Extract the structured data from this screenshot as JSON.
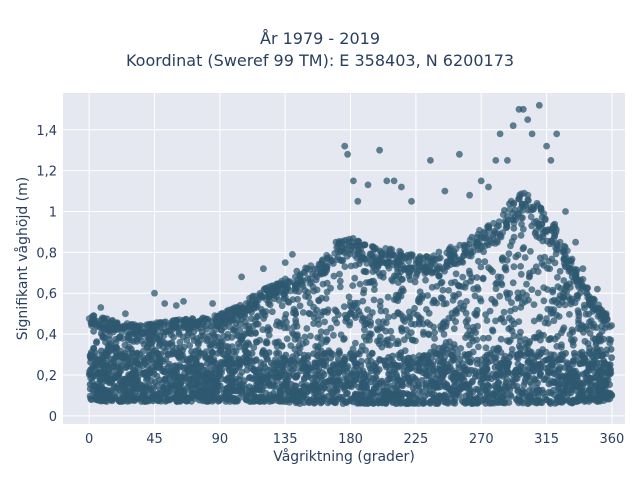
{
  "chart_data": {
    "type": "scatter",
    "title": "År 1979 - 2019",
    "subtitle": "Koordinat (Sweref 99 TM): E 358403, N 6200173",
    "xlabel": "Vågriktning (grader)",
    "ylabel": "Signifikant våghöjd (m)",
    "xlim": [
      -18,
      369
    ],
    "ylim": [
      -0.04,
      1.58
    ],
    "x_ticks": [
      0,
      45,
      90,
      135,
      180,
      225,
      270,
      315,
      360
    ],
    "x_tick_labels": [
      "0",
      "45",
      "90",
      "135",
      "180",
      "225",
      "270",
      "315",
      "360"
    ],
    "y_ticks": [
      0,
      0.2,
      0.4,
      0.6,
      0.8,
      1.0,
      1.2,
      1.4
    ],
    "y_tick_labels": [
      "0",
      "0,2",
      "0,4",
      "0,6",
      "0,8",
      "1",
      "1,2",
      "1,4"
    ],
    "grid": true,
    "marker_color": "#2e5870",
    "plot_bg": "#e5e8f0",
    "envelope": {
      "x": [
        0,
        10,
        20,
        30,
        40,
        50,
        60,
        70,
        80,
        90,
        100,
        110,
        120,
        130,
        140,
        150,
        160,
        170,
        180,
        190,
        200,
        210,
        220,
        230,
        240,
        250,
        260,
        270,
        280,
        290,
        300,
        310,
        320,
        330,
        340,
        350,
        360
      ],
      "y_min": [
        0.08,
        0.07,
        0.07,
        0.07,
        0.07,
        0.07,
        0.07,
        0.07,
        0.07,
        0.07,
        0.07,
        0.07,
        0.07,
        0.07,
        0.06,
        0.06,
        0.06,
        0.06,
        0.06,
        0.06,
        0.06,
        0.06,
        0.06,
        0.06,
        0.06,
        0.06,
        0.06,
        0.06,
        0.06,
        0.06,
        0.06,
        0.06,
        0.06,
        0.06,
        0.07,
        0.07,
        0.08
      ],
      "y_max": [
        0.5,
        0.48,
        0.46,
        0.45,
        0.45,
        0.46,
        0.47,
        0.48,
        0.48,
        0.5,
        0.53,
        0.58,
        0.62,
        0.65,
        0.7,
        0.73,
        0.76,
        0.85,
        0.88,
        0.84,
        0.82,
        0.82,
        0.8,
        0.78,
        0.8,
        0.83,
        0.85,
        0.92,
        0.95,
        1.05,
        1.1,
        1.03,
        0.95,
        0.8,
        0.68,
        0.55,
        0.48
      ]
    },
    "outliers": [
      [
        8,
        0.53
      ],
      [
        25,
        0.5
      ],
      [
        45,
        0.6
      ],
      [
        52,
        0.55
      ],
      [
        60,
        0.54
      ],
      [
        65,
        0.56
      ],
      [
        85,
        0.55
      ],
      [
        105,
        0.68
      ],
      [
        120,
        0.72
      ],
      [
        135,
        0.75
      ],
      [
        140,
        0.79
      ],
      [
        150,
        0.72
      ],
      [
        170,
        0.85
      ],
      [
        176,
        1.32
      ],
      [
        178,
        1.28
      ],
      [
        182,
        1.15
      ],
      [
        185,
        1.05
      ],
      [
        192,
        1.13
      ],
      [
        200,
        1.3
      ],
      [
        205,
        1.15
      ],
      [
        210,
        1.15
      ],
      [
        215,
        1.12
      ],
      [
        222,
        1.05
      ],
      [
        235,
        1.25
      ],
      [
        245,
        1.1
      ],
      [
        255,
        1.28
      ],
      [
        262,
        1.08
      ],
      [
        270,
        1.15
      ],
      [
        275,
        1.12
      ],
      [
        280,
        1.25
      ],
      [
        283,
        1.38
      ],
      [
        288,
        1.25
      ],
      [
        292,
        1.42
      ],
      [
        296,
        1.5
      ],
      [
        299,
        1.5
      ],
      [
        302,
        1.45
      ],
      [
        305,
        1.38
      ],
      [
        310,
        1.52
      ],
      [
        315,
        1.32
      ],
      [
        318,
        1.25
      ],
      [
        322,
        1.38
      ],
      [
        328,
        1.0
      ],
      [
        335,
        0.85
      ],
      [
        340,
        0.72
      ],
      [
        350,
        0.62
      ],
      [
        356,
        0.5
      ]
    ]
  }
}
